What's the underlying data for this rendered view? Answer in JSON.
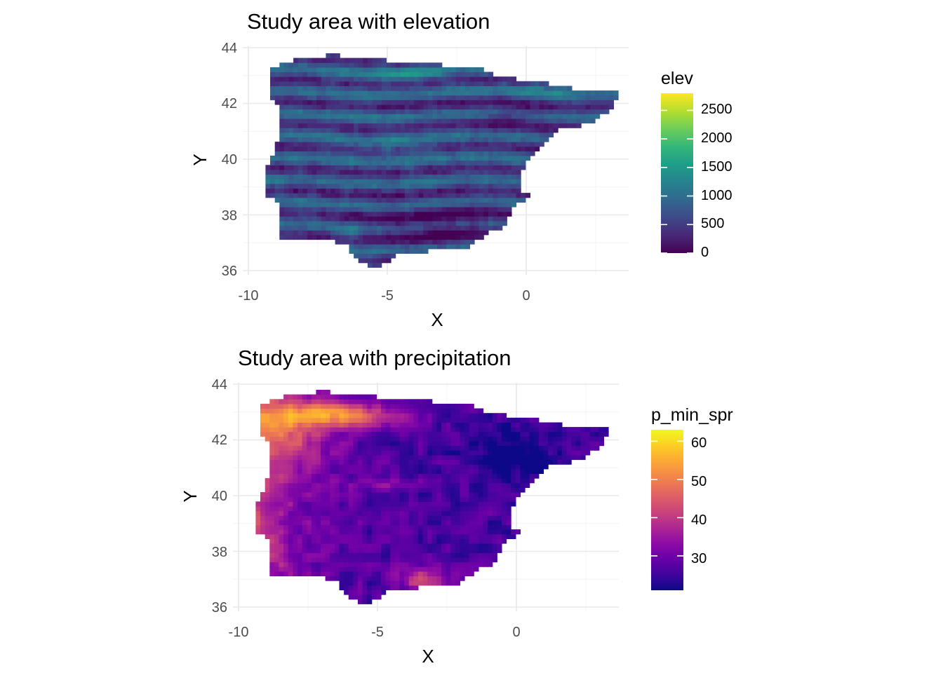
{
  "chart_data": [
    {
      "type": "heatmap",
      "title": "Study area with elevation",
      "xlabel": "X",
      "ylabel": "Y",
      "xlim": [
        -10,
        3.5
      ],
      "ylim": [
        36,
        44
      ],
      "x_ticks": [
        "-10",
        "-5",
        "0"
      ],
      "y_ticks": [
        "36",
        "38",
        "40",
        "42",
        "44"
      ],
      "grid": true,
      "legend": {
        "position": "right",
        "title": "elev",
        "palette": "viridis",
        "colors": [
          "#440154",
          "#482878",
          "#3E4A89",
          "#31688E",
          "#26828E",
          "#1F9E89",
          "#35B779",
          "#6DCD59",
          "#B4DE2C",
          "#FDE725"
        ],
        "range": [
          0,
          2800
        ],
        "labels": [
          "0",
          "500",
          "1000",
          "1500",
          "2000",
          "2500"
        ]
      }
    },
    {
      "type": "heatmap",
      "title": "Study area with precipitation",
      "xlabel": "X",
      "ylabel": "Y",
      "xlim": [
        -10,
        3.5
      ],
      "ylim": [
        36,
        44
      ],
      "x_ticks": [
        "-10",
        "-5",
        "0"
      ],
      "y_ticks": [
        "36",
        "38",
        "40",
        "42",
        "44"
      ],
      "grid": true,
      "legend": {
        "position": "right",
        "title": "p_min_spr",
        "palette": "plasma",
        "colors": [
          "#0D0887",
          "#41049D",
          "#6A00A8",
          "#8F0DA4",
          "#B12A90",
          "#CC4778",
          "#E16462",
          "#F2844B",
          "#FCA636",
          "#FCCE25",
          "#F0F921"
        ],
        "range": [
          21,
          63
        ],
        "labels": [
          "30",
          "40",
          "50",
          "60"
        ]
      }
    }
  ]
}
